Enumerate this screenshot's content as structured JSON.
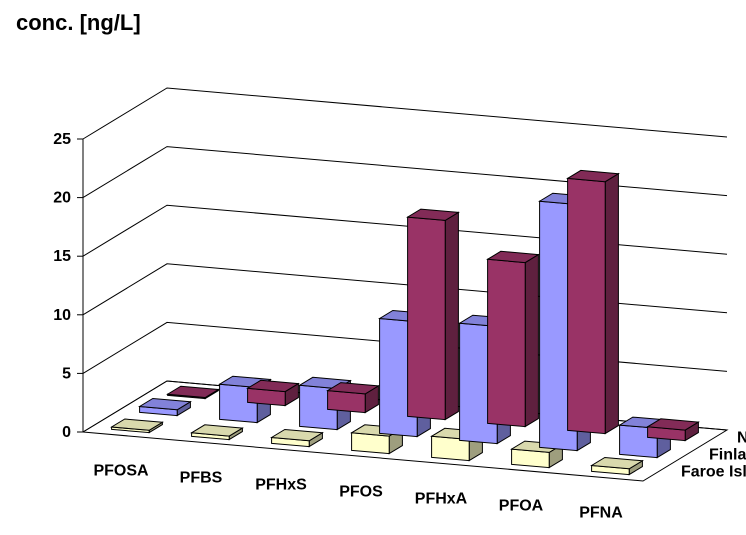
{
  "chart_data": {
    "type": "bar",
    "style": "3d-clustered-depth",
    "ylabel": "conc. [ng/L]",
    "ylim": [
      0,
      25
    ],
    "yticks": [
      0,
      5,
      10,
      15,
      20,
      25
    ],
    "grid": true,
    "categories": [
      "PFOSA",
      "PFBS",
      "PFHxS",
      "PFOS",
      "PFHxA",
      "PFOA",
      "PFNA"
    ],
    "series": [
      {
        "name": "Norway",
        "color": "#993366",
        "values": [
          0.1,
          1.2,
          1.6,
          17.0,
          14.0,
          21.5,
          0.9
        ]
      },
      {
        "name": "Finland",
        "color": "#9999FF",
        "values": [
          0.5,
          3.0,
          3.5,
          9.8,
          10.0,
          21.0,
          2.5
        ]
      },
      {
        "name": "Faroe Islands",
        "color": "#FFFFCC",
        "values": [
          0.2,
          0.3,
          0.5,
          1.5,
          1.8,
          1.3,
          0.5
        ]
      }
    ]
  }
}
